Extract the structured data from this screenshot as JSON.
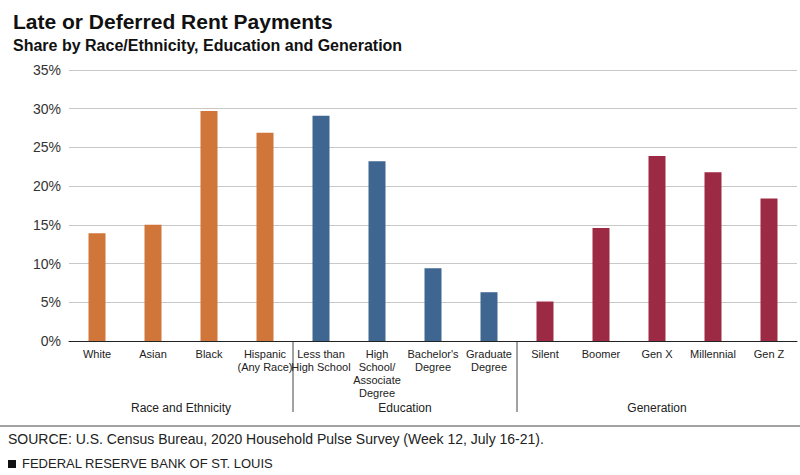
{
  "chart_data": {
    "type": "bar",
    "title": "Late or Deferred Rent Payments",
    "subtitle": "Share by Race/Ethnicity, Education and Generation",
    "categories": [
      "White",
      "Asian",
      "Black",
      "Hispanic\n(Any Race)",
      "Less than\nHigh School",
      "High\nSchool/\nAssociate\nDegree",
      "Bachelor's\nDegree",
      "Graduate\nDegree",
      "Silent",
      "Boomer",
      "Gen X",
      "Millennial",
      "Gen Z"
    ],
    "category_groups": [
      "Race and Ethnicity",
      "Race and Ethnicity",
      "Race and Ethnicity",
      "Race and Ethnicity",
      "Education",
      "Education",
      "Education",
      "Education",
      "Generation",
      "Generation",
      "Generation",
      "Generation",
      "Generation"
    ],
    "values": [
      13.9,
      15.0,
      29.7,
      26.9,
      29.1,
      23.2,
      9.4,
      6.3,
      5.1,
      14.6,
      23.9,
      21.8,
      18.4
    ],
    "colors": [
      "#d0763a",
      "#d0763a",
      "#d0763a",
      "#d0763a",
      "#3f6691",
      "#3f6691",
      "#3f6691",
      "#3f6691",
      "#9c2a45",
      "#9c2a45",
      "#9c2a45",
      "#9c2a45",
      "#9c2a45"
    ],
    "ylim": [
      0,
      35
    ],
    "yticks": [
      {
        "value": 0,
        "label": "0%"
      },
      {
        "value": 5,
        "label": "5%"
      },
      {
        "value": 10,
        "label": "10%"
      },
      {
        "value": 15,
        "label": "15%"
      },
      {
        "value": 20,
        "label": "20%"
      },
      {
        "value": 25,
        "label": "25%"
      },
      {
        "value": 30,
        "label": "30%"
      },
      {
        "value": 35,
        "label": "35%"
      }
    ],
    "grid": true,
    "source": "SOURCE: U.S. Census Bureau, 2020 Household Pulse Survey (Week 12, July 16-21).",
    "footer": "FEDERAL RESERVE BANK OF ST. LOUIS"
  }
}
